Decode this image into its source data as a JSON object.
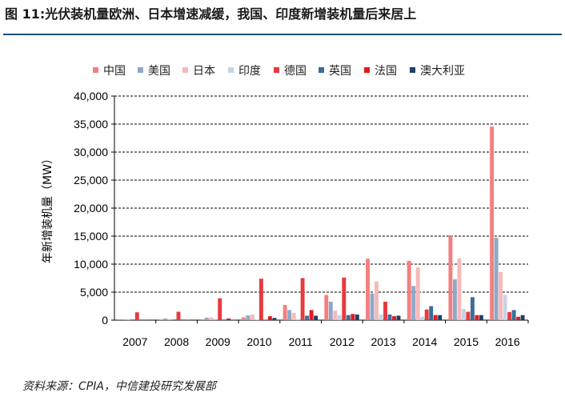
{
  "figure": {
    "title": "图 11:光伏装机量欧洲、日本增速减缓，我国、印度新增装机量后来居上",
    "source": "资料来源：CPIA，中信建投研究发展部"
  },
  "colors": {
    "中国": "#f47f80",
    "美国": "#8fa8c8",
    "日本": "#f9b8b8",
    "印度": "#c6d3e6",
    "德国": "#e8393f",
    "英国": "#3b6d98",
    "法国": "#e4181f",
    "澳大利亚": "#1f3f66",
    "title_rule": "#1f4e79"
  },
  "chart_data": {
    "type": "bar",
    "title": "",
    "xlabel": "",
    "ylabel": "年新增装机量（MW）",
    "ylim": [
      0,
      40000
    ],
    "yticks": [
      "0",
      "5,000",
      "10,000",
      "15,000",
      "20,000",
      "25,000",
      "30,000",
      "35,000",
      "40,000"
    ],
    "grid": "horizontal-dashed",
    "legend_position": "top",
    "categories": [
      "2007",
      "2008",
      "2009",
      "2010",
      "2011",
      "2012",
      "2013",
      "2014",
      "2015",
      "2016"
    ],
    "series": [
      {
        "name": "中国",
        "values": [
          20,
          40,
          160,
          500,
          2700,
          4500,
          10950,
          10600,
          15150,
          34540
        ]
      },
      {
        "name": "美国",
        "values": [
          150,
          300,
          450,
          850,
          1800,
          3300,
          4750,
          6100,
          7300,
          14700
        ]
      },
      {
        "name": "日本",
        "values": [
          200,
          230,
          480,
          990,
          1300,
          1700,
          6900,
          9400,
          11000,
          8600
        ]
      },
      {
        "name": "印度",
        "values": [
          0,
          0,
          30,
          60,
          200,
          900,
          1000,
          600,
          2000,
          4500
        ]
      },
      {
        "name": "德国",
        "values": [
          1400,
          1500,
          3900,
          7400,
          7500,
          7600,
          3300,
          1900,
          1500,
          1450
        ]
      },
      {
        "name": "英国",
        "values": [
          0,
          0,
          0,
          40,
          800,
          900,
          1000,
          2500,
          4100,
          1800
        ]
      },
      {
        "name": "法国",
        "values": [
          20,
          40,
          300,
          700,
          1800,
          1100,
          700,
          900,
          900,
          600
        ]
      },
      {
        "name": "澳大利亚",
        "values": [
          0,
          0,
          50,
          400,
          800,
          1000,
          800,
          900,
          900,
          900
        ]
      }
    ]
  }
}
